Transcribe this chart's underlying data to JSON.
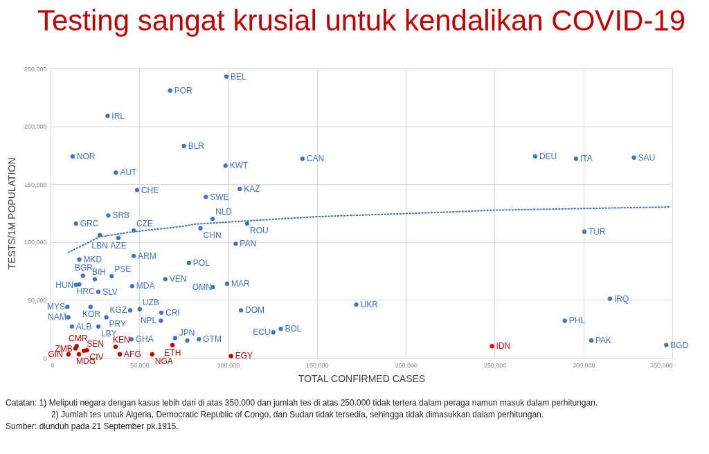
{
  "chart_data": {
    "type": "scatter",
    "title": "Testing sangat krusial untuk kendalikan COVID-19",
    "xlabel": "TOTAL CONFIRMED CASES",
    "ylabel": "TESTS/1M POPULATION",
    "xlim": [
      0,
      350000
    ],
    "ylim": [
      0,
      250000
    ],
    "xticks": [
      0,
      {
        "value": 50000,
        "label": "50,000"
      },
      {
        "value": 100000,
        "label": "100,000"
      },
      {
        "value": 150000,
        "label": "150,000"
      },
      {
        "value": 200000,
        "label": "200,000"
      },
      {
        "value": 250000,
        "label": "250,000"
      },
      {
        "value": 300000,
        "label": "300,000"
      },
      {
        "value": 350000,
        "label": "350,000"
      }
    ],
    "yticks": [
      0,
      {
        "value": 50000,
        "label": "50,000"
      },
      {
        "value": 100000,
        "label": "100,000"
      },
      {
        "value": 150000,
        "label": "150,000"
      },
      {
        "value": 200000,
        "label": "200,000"
      },
      {
        "value": 250000,
        "label": "250,000"
      }
    ],
    "grid": true,
    "legend": false,
    "marker": "circle",
    "annotations": [
      "Catatan:    1) Meliputi negara dengan kasus lebih dari di atas 350.000 dan jumlah tes di atas 250.000 tidak tertera dalam peraga namun masuk dalam perhitungan.",
      "2) Jumlah tes untuk Algeria, Democratic Republic of Congo, dan Sudan tidak tersedia, sehingga tidak dimasukkan dalam perhitungan.",
      "Sumber: diunduh pada 21 September pk.1915."
    ],
    "series": [
      {
        "type": "line",
        "line_style": "dotted",
        "marker": "none",
        "color": "#4472c4",
        "x": [
          10000,
          27700,
          46800,
          71300,
          81800,
          150000,
          218000,
          250000,
          300000,
          349000
        ],
        "values": [
          91000,
          104600,
          109000,
          113000,
          115600,
          122000,
          125600,
          127600,
          129000,
          130400
        ]
      },
      {
        "name": "BEL",
        "color": "#4472c4",
        "x": [
          99000
        ],
        "values": [
          243000
        ]
      },
      {
        "name": "POR",
        "color": "#4472c4",
        "x": [
          67300
        ],
        "values": [
          231000
        ]
      },
      {
        "name": "IRL",
        "color": "#4472c4",
        "x": [
          32100
        ],
        "values": [
          209000
        ]
      },
      {
        "name": "NOR",
        "color": "#4472c4",
        "x": [
          12400
        ],
        "values": [
          174000
        ]
      },
      {
        "name": "AUT",
        "color": "#4472c4",
        "x": [
          36800
        ],
        "values": [
          160000
        ]
      },
      {
        "name": "BLR",
        "color": "#4472c4",
        "x": [
          75100
        ],
        "values": [
          183000
        ]
      },
      {
        "name": "KWT",
        "color": "#4472c4",
        "x": [
          98500
        ],
        "values": [
          166000
        ]
      },
      {
        "name": "CAN",
        "color": "#4472c4",
        "x": [
          141800
        ],
        "values": [
          172000
        ]
      },
      {
        "name": "CHE",
        "color": "#4472c4",
        "x": [
          48700
        ],
        "values": [
          145000
        ]
      },
      {
        "name": "KAZ",
        "color": "#4472c4",
        "x": [
          106500
        ],
        "values": [
          146000
        ]
      },
      {
        "name": "SWE",
        "color": "#4472c4",
        "x": [
          87400
        ],
        "values": [
          139000
        ]
      },
      {
        "name": "SRB",
        "color": "#4472c4",
        "x": [
          32500
        ],
        "values": [
          123000
        ]
      },
      {
        "name": "CZE",
        "color": "#4472c4",
        "x": [
          46800
        ],
        "values": [
          110000
        ]
      },
      {
        "name": "GRC",
        "color": "#4472c4",
        "x": [
          14300
        ],
        "values": [
          116000
        ]
      },
      {
        "name": "NLD",
        "color": "#4472c4",
        "x": [
          91200
        ],
        "values": [
          120000
        ]
      },
      {
        "name": "CHN",
        "color": "#4472c4",
        "x": [
          84400
        ],
        "values": [
          112000
        ]
      },
      {
        "name": "ROU",
        "color": "#4472c4",
        "x": [
          110700
        ],
        "values": [
          116000
        ]
      },
      {
        "name": "LBN",
        "color": "#4472c4",
        "x": [
          27700
        ],
        "values": [
          106000
        ]
      },
      {
        "name": "AZE",
        "color": "#4472c4",
        "x": [
          38200
        ],
        "values": [
          103500
        ]
      },
      {
        "name": "PAN",
        "color": "#4472c4",
        "x": [
          104200
        ],
        "values": [
          98500
        ]
      },
      {
        "name": "MKD",
        "color": "#4472c4",
        "x": [
          16200
        ],
        "values": [
          85000
        ]
      },
      {
        "name": "ARM",
        "color": "#4472c4",
        "x": [
          46800
        ],
        "values": [
          88000
        ]
      },
      {
        "name": "POL",
        "color": "#4472c4",
        "x": [
          77900
        ],
        "values": [
          82000
        ]
      },
      {
        "name": "BGR",
        "color": "#4472c4",
        "x": [
          18200
        ],
        "values": [
          71000
        ]
      },
      {
        "name": "BIH",
        "color": "#4472c4",
        "x": [
          24900
        ],
        "values": [
          68000
        ]
      },
      {
        "name": "PSE",
        "color": "#4472c4",
        "x": [
          34400
        ],
        "values": [
          70500
        ]
      },
      {
        "name": "HUN",
        "color": "#4472c4",
        "x": [
          14300
        ],
        "values": [
          63000
        ]
      },
      {
        "name": "HRC",
        "color": "#4472c4",
        "x": [
          16200
        ],
        "values": [
          63500
        ]
      },
      {
        "name": "SLV",
        "color": "#4472c4",
        "x": [
          26900
        ],
        "values": [
          57000
        ]
      },
      {
        "name": "MDA",
        "color": "#4472c4",
        "x": [
          45900
        ],
        "values": [
          62000
        ]
      },
      {
        "name": "VEN",
        "color": "#4472c4",
        "x": [
          64600
        ],
        "values": [
          68000
        ]
      },
      {
        "name": "OMN",
        "color": "#4472c4",
        "x": [
          91300
        ],
        "values": [
          61000
        ]
      },
      {
        "name": "MAR",
        "color": "#4472c4",
        "x": [
          99400
        ],
        "values": [
          64000
        ]
      },
      {
        "name": "MYS",
        "color": "#4472c4",
        "x": [
          9500
        ],
        "values": [
          44000
        ]
      },
      {
        "name": "KOR",
        "color": "#4472c4",
        "x": [
          22500
        ],
        "values": [
          44000
        ]
      },
      {
        "name": "KGZ",
        "color": "#4472c4",
        "x": [
          44800
        ],
        "values": [
          41000
        ]
      },
      {
        "name": "UZB",
        "color": "#4472c4",
        "x": [
          50200
        ],
        "values": [
          42000
        ]
      },
      {
        "name": "CRI",
        "color": "#4472c4",
        "x": [
          62400
        ],
        "values": [
          39000
        ]
      },
      {
        "name": "DOM",
        "color": "#4472c4",
        "x": [
          107200
        ],
        "values": [
          41000
        ]
      },
      {
        "name": "UKR",
        "color": "#4472c4",
        "x": [
          172100
        ],
        "values": [
          46000
        ]
      },
      {
        "name": "NAM",
        "color": "#4472c4",
        "x": [
          10000
        ],
        "values": [
          35000
        ]
      },
      {
        "name": "PRY",
        "color": "#4472c4",
        "x": [
          31400
        ],
        "values": [
          35000
        ]
      },
      {
        "name": "NPL",
        "color": "#4472c4",
        "x": [
          62100
        ],
        "values": [
          32000
        ]
      },
      {
        "name": "ALB",
        "color": "#4472c4",
        "x": [
          12000
        ],
        "values": [
          27000
        ]
      },
      {
        "name": "LBY",
        "color": "#4472c4",
        "x": [
          26900
        ],
        "values": [
          27000
        ]
      },
      {
        "name": "GHA",
        "color": "#4472c4",
        "x": [
          45500
        ],
        "values": [
          16000
        ]
      },
      {
        "color": "#4472c4",
        "x": [
          70100
        ],
        "values": [
          17000
        ]
      },
      {
        "name": "JPN",
        "color": "#4472c4",
        "x": [
          77000
        ],
        "values": [
          15000
        ]
      },
      {
        "name": "GTM",
        "color": "#4472c4",
        "x": [
          83500
        ],
        "values": [
          16000
        ]
      },
      {
        "name": "ECU",
        "color": "#4472c4",
        "x": [
          125400
        ],
        "values": [
          22000
        ]
      },
      {
        "name": "BOL",
        "color": "#4472c4",
        "x": [
          129600
        ],
        "values": [
          25000
        ]
      },
      {
        "name": "DEU",
        "color": "#4472c4",
        "x": [
          272800
        ],
        "values": [
          174000
        ]
      },
      {
        "name": "ITA",
        "color": "#4472c4",
        "x": [
          295800
        ],
        "values": [
          172000
        ]
      },
      {
        "name": "SAU",
        "color": "#4472c4",
        "x": [
          328400
        ],
        "values": [
          173000
        ]
      },
      {
        "name": "TUR",
        "color": "#4472c4",
        "x": [
          300500
        ],
        "values": [
          109000
        ]
      },
      {
        "name": "IRQ",
        "color": "#4472c4",
        "x": [
          314900
        ],
        "values": [
          51000
        ]
      },
      {
        "name": "PHL",
        "color": "#4472c4",
        "x": [
          289500
        ],
        "values": [
          32000
        ]
      },
      {
        "name": "PAK",
        "color": "#4472c4",
        "x": [
          304400
        ],
        "values": [
          15000
        ]
      },
      {
        "name": "BGD",
        "color": "#4472c4",
        "x": [
          346600
        ],
        "values": [
          11000
        ]
      },
      {
        "name": "CMR",
        "color": "#c00000",
        "x": [
          14700
        ],
        "values": [
          10000
        ]
      },
      {
        "name": "ZMB",
        "color": "#c00000",
        "x": [
          14000
        ],
        "values": [
          8000
        ]
      },
      {
        "name": "SEN",
        "color": "#c00000",
        "x": [
          18800
        ],
        "values": [
          6000
        ]
      },
      {
        "name": "CIV",
        "color": "#c00000",
        "x": [
          20500
        ],
        "values": [
          6500
        ]
      },
      {
        "name": "GIN",
        "color": "#c00000",
        "x": [
          10100
        ],
        "values": [
          3000
        ]
      },
      {
        "name": "MDG",
        "color": "#c00000",
        "x": [
          16000
        ],
        "values": [
          3000
        ]
      },
      {
        "name": "KEN",
        "color": "#c00000",
        "x": [
          36600
        ],
        "values": [
          9500
        ]
      },
      {
        "name": "AFG",
        "color": "#c00000",
        "x": [
          39000
        ],
        "values": [
          3000
        ]
      },
      {
        "name": "NGA",
        "color": "#c00000",
        "x": [
          57200
        ],
        "values": [
          3000
        ]
      },
      {
        "name": "ETH",
        "color": "#c00000",
        "x": [
          68600
        ],
        "values": [
          11000
        ]
      },
      {
        "name": "EGY",
        "color": "#c00000",
        "x": [
          101600
        ],
        "values": [
          1500
        ]
      },
      {
        "name": "IDN",
        "color": "#ff0000",
        "x": [
          248500
        ],
        "values": [
          10000
        ]
      }
    ]
  }
}
